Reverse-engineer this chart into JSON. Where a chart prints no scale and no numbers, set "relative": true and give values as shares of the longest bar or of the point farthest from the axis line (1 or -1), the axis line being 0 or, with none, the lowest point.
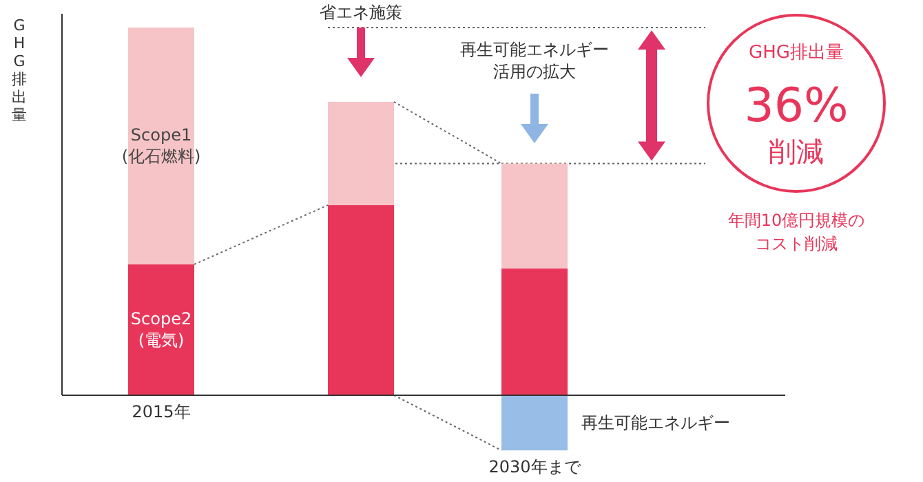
{
  "chart_data": {
    "type": "bar",
    "stacked": true,
    "relative": true,
    "ylabel": "GHG排出量",
    "categories": [
      "2015年",
      null,
      "2030年まで"
    ],
    "series": [
      {
        "name": "Scope2\n(電気)",
        "color": "#e8365a",
        "values": [
          0.356,
          0.517,
          0.345
        ]
      },
      {
        "name": "Scope1\n(化石燃料)",
        "color": "#f6c4c6",
        "values": [
          0.644,
          0.281,
          0.285
        ]
      },
      {
        "name": "再生可能エネルギー",
        "color": "#98bde6",
        "values": [
          null,
          null,
          -0.15
        ]
      }
    ],
    "ref_lines": [
      {
        "axis": "y",
        "value": 1,
        "label": null,
        "color": "#666666",
        "line_style": "dotted"
      },
      {
        "axis": "y",
        "value": 0.63,
        "label": null,
        "color": "#666666",
        "line_style": "dotted"
      }
    ],
    "annotations": [
      "省エネ施策",
      "再生可能エネルギー",
      "活用の拡大",
      "GHG排出量",
      "36%",
      "削減",
      "年間10億円規模の",
      "コスト削減"
    ]
  }
}
